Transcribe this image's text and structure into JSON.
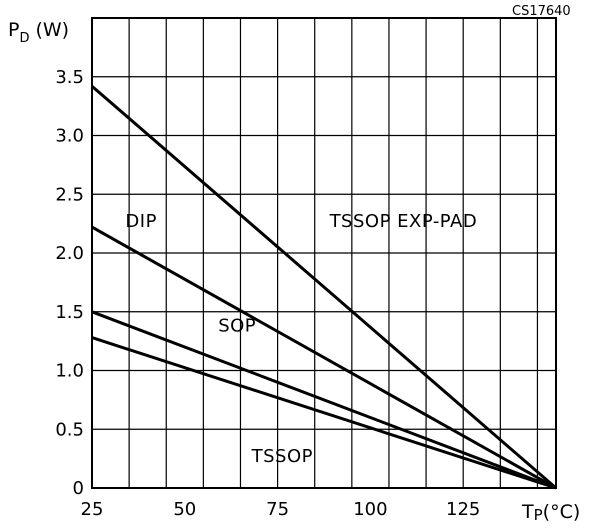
{
  "chart_data": {
    "type": "line",
    "ref_code": "CS17640",
    "ylabel_main": "P",
    "ylabel_sub": "D",
    "ylabel_unit": "(W)",
    "xlabel_main": "T",
    "xlabel_sub": "P",
    "xlabel_unit": "(°C)",
    "xlim": [
      25,
      150
    ],
    "ylim": [
      0,
      4
    ],
    "x_grid_step": 10,
    "y_grid_step": 0.5,
    "grid": true,
    "x_ticks": [
      {
        "value": 25,
        "label": "25"
      },
      {
        "value": 50,
        "label": "50"
      },
      {
        "value": 75,
        "label": "75"
      },
      {
        "value": 100,
        "label": "100"
      },
      {
        "value": 125,
        "label": "125"
      }
    ],
    "y_ticks": [
      {
        "value": 0,
        "label": "0"
      },
      {
        "value": 0.5,
        "label": "0.5"
      },
      {
        "value": 1.0,
        "label": "1.0"
      },
      {
        "value": 1.5,
        "label": "1.5"
      },
      {
        "value": 2.0,
        "label": "2.0"
      },
      {
        "value": 2.5,
        "label": "2.5"
      },
      {
        "value": 3.0,
        "label": "3.0"
      },
      {
        "value": 3.5,
        "label": "3.5"
      }
    ],
    "series": [
      {
        "label": "TSSOP EXP-PAD",
        "points": [
          [
            25,
            3.42
          ],
          [
            150,
            0
          ]
        ],
        "label_at": [
          89,
          2.22
        ]
      },
      {
        "label": "DIP",
        "points": [
          [
            25,
            2.22
          ],
          [
            150,
            0
          ]
        ],
        "label_at": [
          34,
          2.22
        ]
      },
      {
        "label": "SOP",
        "points": [
          [
            25,
            1.5
          ],
          [
            150,
            0
          ]
        ],
        "label_at": [
          59,
          1.33
        ]
      },
      {
        "label": "TSSOP",
        "points": [
          [
            25,
            1.28
          ],
          [
            150,
            0
          ]
        ],
        "label_at": [
          68,
          0.22
        ]
      }
    ]
  }
}
